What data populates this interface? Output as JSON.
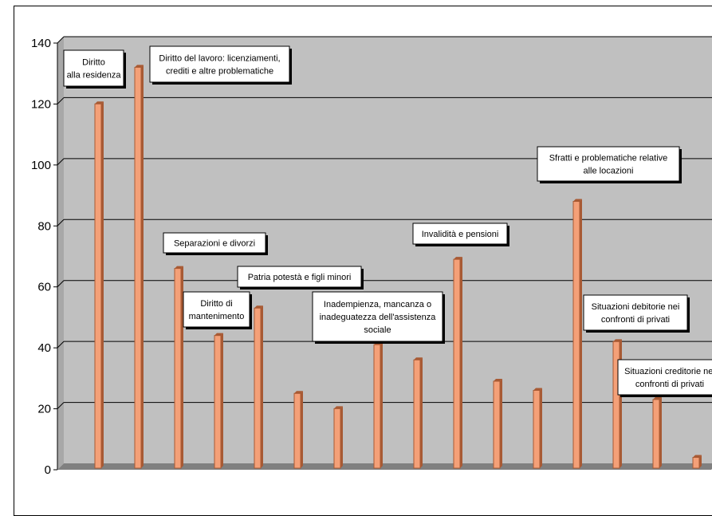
{
  "chart_data": {
    "type": "bar",
    "ylim": [
      0,
      140
    ],
    "yticks": [
      "0",
      "20",
      "40",
      "60",
      "80",
      "100",
      "120",
      "140"
    ],
    "grid": true,
    "colors": {
      "plot_bg": "#c0c0c0",
      "bar_face": "#f4a078",
      "bar_edge": "#a85a34",
      "gridline": "#000000",
      "floor": "#808080"
    },
    "values": [
      119,
      131,
      65,
      43,
      52,
      24,
      19,
      40,
      35,
      68,
      28,
      25,
      87,
      41,
      22,
      3
    ],
    "annotations": [
      {
        "bar": 0,
        "lines": [
          "Diritto",
          "alla residenza"
        ]
      },
      {
        "bar": 1,
        "lines": [
          "Diritto del lavoro: licenziamenti,",
          "crediti e altre problematiche"
        ]
      },
      {
        "bar": 2,
        "lines": [
          "Separazioni e divorzi"
        ]
      },
      {
        "bar": 3,
        "lines": [
          "Diritto  di",
          "mantenimento"
        ]
      },
      {
        "bar": 4,
        "lines": [
          "Patria potestà e figli minori"
        ]
      },
      {
        "bar": 7,
        "lines": [
          "Inadempienza, mancanza o",
          "inadeguatezza dell'assistenza",
          "sociale"
        ]
      },
      {
        "bar": 9,
        "lines": [
          "Invalidità e pensioni"
        ]
      },
      {
        "bar": 12,
        "lines": [
          "Sfratti e problematiche relative",
          "alle locazioni"
        ]
      },
      {
        "bar": 13,
        "lines": [
          "Situazioni debitorie nei",
          "confronti  di  privati"
        ]
      },
      {
        "bar": 14,
        "lines": [
          "Situazioni creditorie nei",
          "confronti  di  privati"
        ]
      }
    ]
  }
}
